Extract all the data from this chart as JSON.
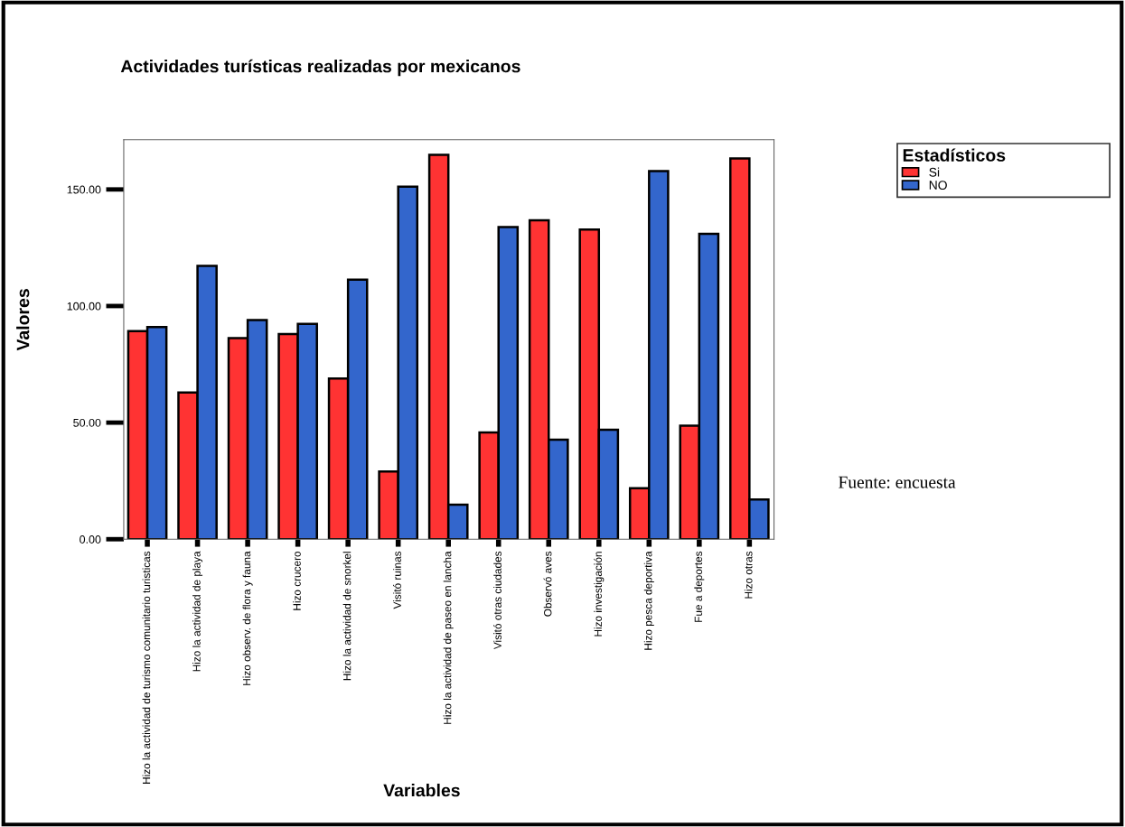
{
  "chart_data": {
    "type": "bar",
    "title": "Actividades turísticas realizadas por mexicanos",
    "xlabel": "Variables",
    "ylabel": "Valores",
    "categories": [
      "Hizo la actividad de turismo comunitario turisticas",
      "Hizo la actividad de playa",
      "Hizo observ. de flora y fauna",
      "Hizo crucero",
      "Hizo la actividad de snorkel",
      "Visitó ruinas",
      "Hizo la actividad de paseo en lancha",
      "Visitó otras ciudades",
      "Observó aves",
      "Hizo investigación",
      "Hizo pesca deportiva",
      "Fue a deportes",
      "Hizo otras"
    ],
    "series": [
      {
        "name": "Si",
        "color": "#ff3333",
        "values": [
          89.2,
          62.9,
          86.2,
          88.0,
          68.9,
          29.0,
          164.8,
          45.8,
          136.8,
          132.8,
          21.9,
          48.7,
          163.3
        ]
      },
      {
        "name": "NO",
        "color": "#3366cc",
        "values": [
          91.0,
          117.2,
          94.0,
          92.3,
          111.3,
          151.2,
          14.8,
          133.9,
          42.7,
          46.9,
          157.9,
          131.0,
          17.0
        ]
      }
    ],
    "ylim": [
      0,
      171.3
    ],
    "yticks": [
      {
        "value": 0,
        "label": "0.00"
      },
      {
        "value": 50,
        "label": "50.00"
      },
      {
        "value": 100,
        "label": "100.00"
      },
      {
        "value": 150,
        "label": "150.00"
      }
    ],
    "legend_title": "Estadísticos",
    "legend": "top right",
    "grid": false,
    "annotations": [
      "Fuente: encuesta"
    ]
  }
}
